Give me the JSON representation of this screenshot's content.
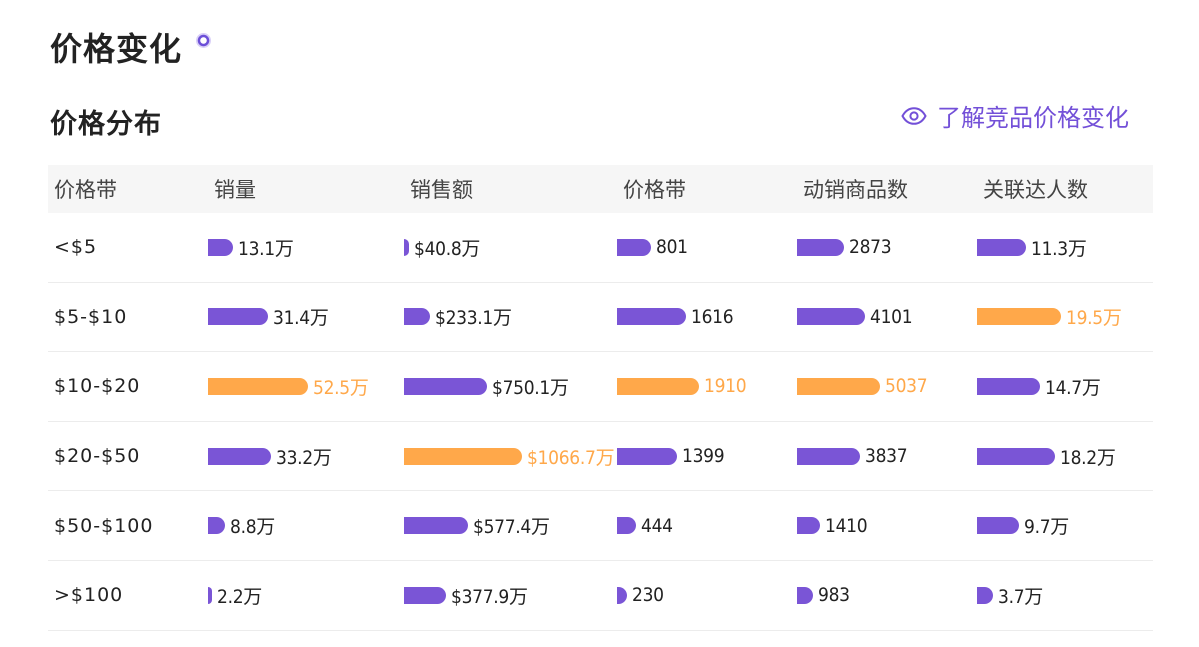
{
  "header": {
    "title": "价格变化",
    "section_title": "价格分布",
    "learn_link": "了解竞品价格变化"
  },
  "colors": {
    "accent": "#7a55d6",
    "highlight": "#ffa84a",
    "link": "#7350d8"
  },
  "table": {
    "columns": [
      "价格带",
      "销量",
      "销售额",
      "价格带",
      "动销商品数",
      "关联达人数"
    ],
    "rows": [
      {
        "band": "<$5",
        "cells": [
          {
            "text": "13.1万",
            "value": 13.1,
            "highlight": false
          },
          {
            "text": "$40.8万",
            "value": 40.8,
            "highlight": false
          },
          {
            "text": "801",
            "value": 801,
            "highlight": false
          },
          {
            "text": "2873",
            "value": 2873,
            "highlight": false
          },
          {
            "text": "11.3万",
            "value": 11.3,
            "highlight": false
          }
        ]
      },
      {
        "band": "$5-$10",
        "cells": [
          {
            "text": "31.4万",
            "value": 31.4,
            "highlight": false
          },
          {
            "text": "$233.1万",
            "value": 233.1,
            "highlight": false
          },
          {
            "text": "1616",
            "value": 1616,
            "highlight": false
          },
          {
            "text": "4101",
            "value": 4101,
            "highlight": false
          },
          {
            "text": "19.5万",
            "value": 19.5,
            "highlight": true
          }
        ]
      },
      {
        "band": "$10-$20",
        "cells": [
          {
            "text": "52.5万",
            "value": 52.5,
            "highlight": true
          },
          {
            "text": "$750.1万",
            "value": 750.1,
            "highlight": false
          },
          {
            "text": "1910",
            "value": 1910,
            "highlight": true
          },
          {
            "text": "5037",
            "value": 5037,
            "highlight": true
          },
          {
            "text": "14.7万",
            "value": 14.7,
            "highlight": false
          }
        ]
      },
      {
        "band": "$20-$50",
        "cells": [
          {
            "text": "33.2万",
            "value": 33.2,
            "highlight": false
          },
          {
            "text": "$1066.7万",
            "value": 1066.7,
            "highlight": true
          },
          {
            "text": "1399",
            "value": 1399,
            "highlight": false
          },
          {
            "text": "3837",
            "value": 3837,
            "highlight": false
          },
          {
            "text": "18.2万",
            "value": 18.2,
            "highlight": false
          }
        ]
      },
      {
        "band": "$50-$100",
        "cells": [
          {
            "text": "8.8万",
            "value": 8.8,
            "highlight": false
          },
          {
            "text": "$577.4万",
            "value": 577.4,
            "highlight": false
          },
          {
            "text": "444",
            "value": 444,
            "highlight": false
          },
          {
            "text": "1410",
            "value": 1410,
            "highlight": false
          },
          {
            "text": "9.7万",
            "value": 9.7,
            "highlight": false
          }
        ]
      },
      {
        "band": ">$100",
        "cells": [
          {
            "text": "2.2万",
            "value": 2.2,
            "highlight": false
          },
          {
            "text": "$377.9万",
            "value": 377.9,
            "highlight": false
          },
          {
            "text": "230",
            "value": 230,
            "highlight": false
          },
          {
            "text": "983",
            "value": 983,
            "highlight": false
          },
          {
            "text": "3.7万",
            "value": 3.7,
            "highlight": false
          }
        ]
      }
    ]
  }
}
